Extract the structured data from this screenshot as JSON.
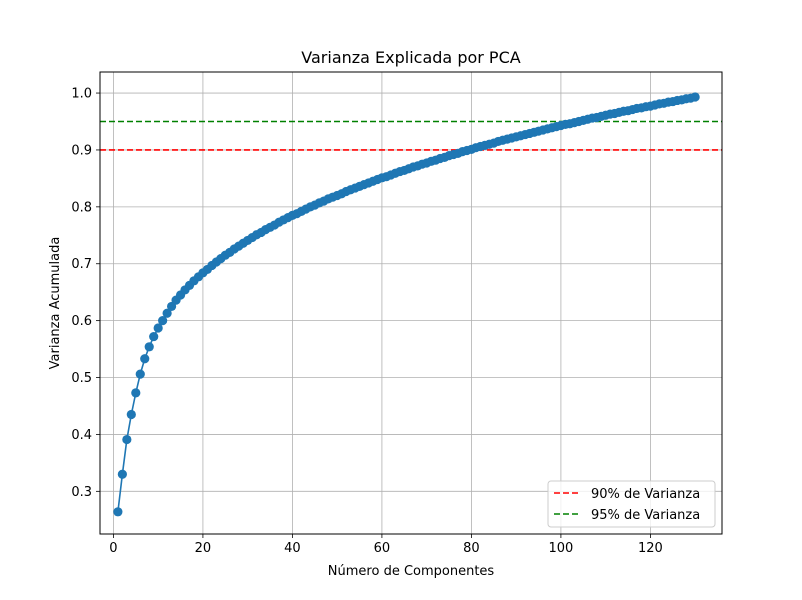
{
  "chart_data": {
    "type": "line",
    "title": "Varianza Explicada por PCA",
    "xlabel": "Número de Componentes",
    "ylabel": "Varianza Acumulada",
    "xlim": [
      -3,
      136
    ],
    "ylim": [
      0.225,
      1.037
    ],
    "xticks": [
      0,
      20,
      40,
      60,
      80,
      100,
      120
    ],
    "yticks": [
      0.3,
      0.4,
      0.5,
      0.6,
      0.7,
      0.8,
      0.9,
      1.0
    ],
    "ytick_labels": [
      "0.3",
      "0.4",
      "0.5",
      "0.6",
      "0.7",
      "0.8",
      "0.9",
      "1.0"
    ],
    "grid": true,
    "legend_position": "lower-right",
    "series": [
      {
        "color": "#1f77b4",
        "marker": "circle",
        "x": [
          1,
          2,
          3,
          4,
          5,
          6,
          7,
          8,
          9,
          10,
          11,
          12,
          13,
          14,
          15,
          16,
          17,
          18,
          19,
          20,
          21,
          22,
          23,
          24,
          25,
          26,
          27,
          28,
          29,
          30,
          31,
          32,
          33,
          34,
          35,
          36,
          37,
          38,
          39,
          40,
          41,
          42,
          43,
          44,
          45,
          46,
          47,
          48,
          49,
          50,
          51,
          52,
          53,
          54,
          55,
          56,
          57,
          58,
          59,
          60,
          61,
          62,
          63,
          64,
          65,
          66,
          67,
          68,
          69,
          70,
          71,
          72,
          73,
          74,
          75,
          76,
          77,
          78,
          79,
          80,
          81,
          82,
          83,
          84,
          85,
          86,
          87,
          88,
          89,
          90,
          91,
          92,
          93,
          94,
          95,
          96,
          97,
          98,
          99,
          100,
          101,
          102,
          103,
          104,
          105,
          106,
          107,
          108,
          109,
          110,
          111,
          112,
          113,
          114,
          115,
          116,
          117,
          118,
          119,
          120,
          121,
          122,
          123,
          124,
          125,
          126,
          127,
          128,
          129,
          130
        ],
        "y": [
          0.264,
          0.33,
          0.391,
          0.435,
          0.473,
          0.506,
          0.533,
          0.554,
          0.572,
          0.587,
          0.6,
          0.613,
          0.625,
          0.636,
          0.645,
          0.654,
          0.662,
          0.67,
          0.677,
          0.684,
          0.69,
          0.697,
          0.703,
          0.709,
          0.715,
          0.72,
          0.726,
          0.731,
          0.736,
          0.741,
          0.746,
          0.751,
          0.755,
          0.76,
          0.764,
          0.768,
          0.773,
          0.777,
          0.781,
          0.785,
          0.788,
          0.792,
          0.796,
          0.8,
          0.803,
          0.807,
          0.81,
          0.814,
          0.817,
          0.82,
          0.823,
          0.827,
          0.83,
          0.833,
          0.836,
          0.839,
          0.842,
          0.845,
          0.848,
          0.851,
          0.853,
          0.856,
          0.859,
          0.862,
          0.864,
          0.867,
          0.87,
          0.872,
          0.875,
          0.877,
          0.88,
          0.882,
          0.885,
          0.887,
          0.89,
          0.892,
          0.894,
          0.897,
          0.899,
          0.901,
          0.904,
          0.906,
          0.908,
          0.91,
          0.912,
          0.915,
          0.917,
          0.919,
          0.921,
          0.923,
          0.925,
          0.927,
          0.929,
          0.931,
          0.933,
          0.935,
          0.937,
          0.939,
          0.941,
          0.943,
          0.945,
          0.946,
          0.948,
          0.95,
          0.952,
          0.954,
          0.956,
          0.957,
          0.959,
          0.961,
          0.963,
          0.964,
          0.966,
          0.968,
          0.969,
          0.971,
          0.973,
          0.974,
          0.976,
          0.977,
          0.979,
          0.981,
          0.982,
          0.984,
          0.985,
          0.987,
          0.988,
          0.99,
          0.991,
          0.993
        ]
      }
    ],
    "reference_lines": [
      {
        "label": "90% de Varianza",
        "y": 0.9,
        "color": "#ff0000"
      },
      {
        "label": "95% de Varianza",
        "y": 0.95,
        "color": "#008000"
      }
    ]
  }
}
